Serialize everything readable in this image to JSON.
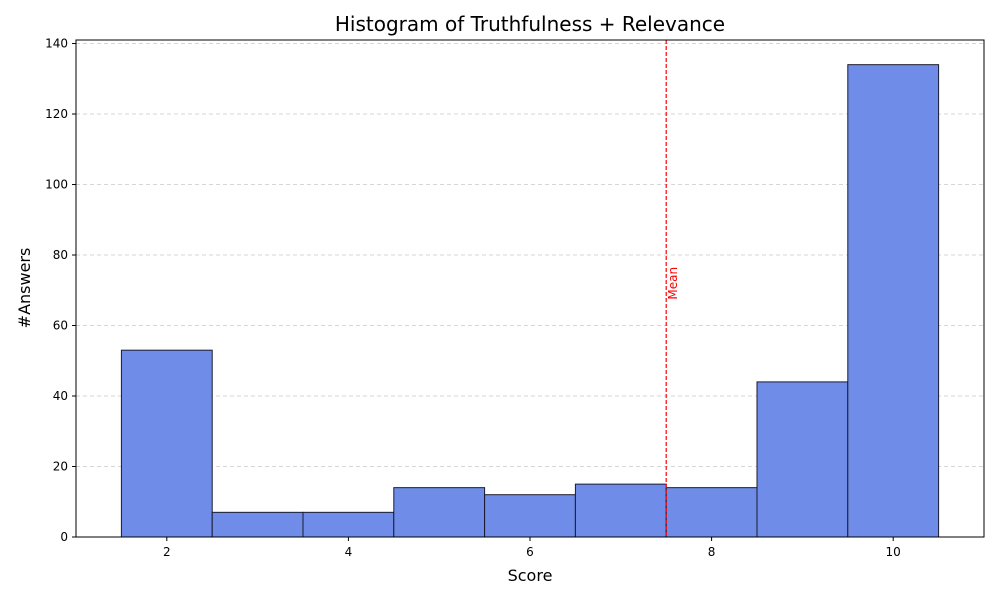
{
  "chart_data": {
    "type": "bar",
    "title": "Histogram of Truthfulness + Relevance",
    "xlabel": "Score",
    "ylabel": "#Answers",
    "bin_edges": [
      1.5,
      2.5,
      3.5,
      4.5,
      5.5,
      6.5,
      7.5,
      8.5,
      9.5,
      10.5
    ],
    "values": [
      53,
      7,
      7,
      14,
      12,
      15,
      14,
      44,
      134
    ],
    "xlim": [
      1.0,
      11.0
    ],
    "ylim": [
      0,
      141
    ],
    "xticks": [
      2,
      4,
      6,
      8,
      10
    ],
    "xtick_labels": [
      "2",
      "4",
      "6",
      "8",
      "10"
    ],
    "yticks": [
      0,
      20,
      40,
      60,
      80,
      100,
      120,
      140
    ],
    "ytick_labels": [
      "0",
      "20",
      "40",
      "60",
      "80",
      "100",
      "120",
      "140"
    ],
    "grid": {
      "axis": "y",
      "style": "dashed"
    },
    "mean_line": {
      "x": 7.5,
      "label": "Mean",
      "color": "#ff0000"
    },
    "bar_color": "#6f8de8",
    "edge_color": "#1a1a2e"
  }
}
